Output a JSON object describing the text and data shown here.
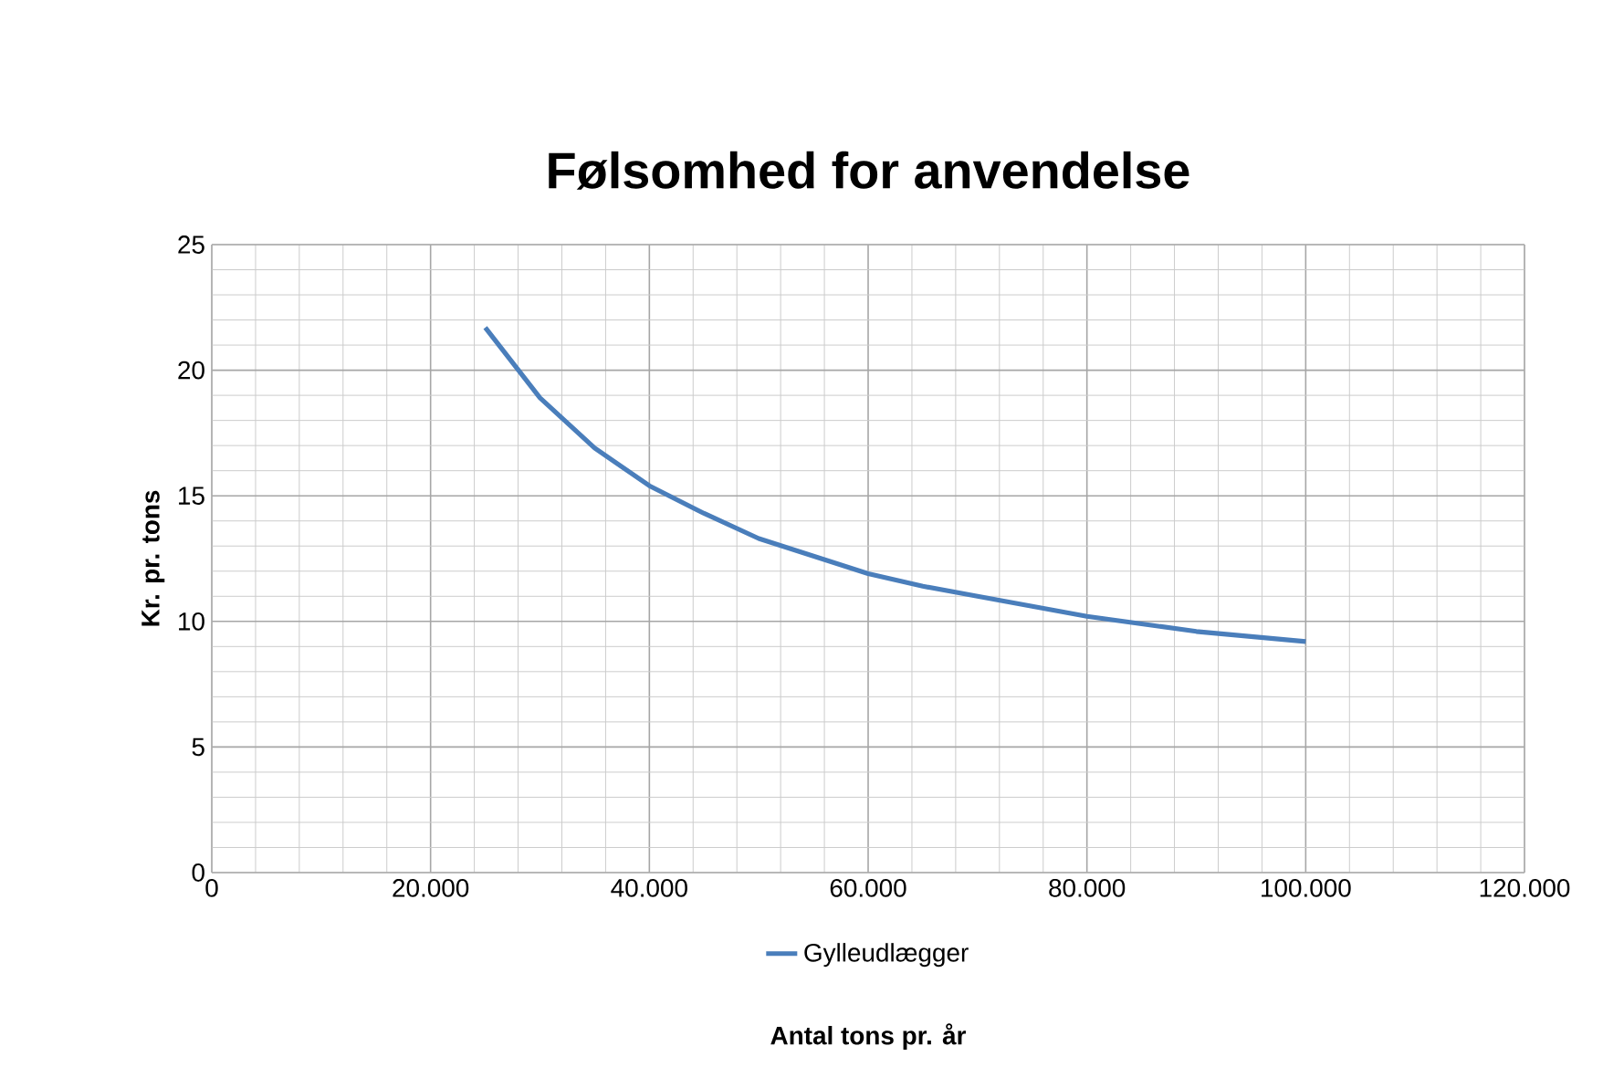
{
  "chart_data": {
    "type": "line",
    "title": "Følsomhed for anvendelse",
    "xlabel": "Antal tons pr. år",
    "ylabel": "Kr. pr. tons",
    "x": [
      25000,
      30000,
      35000,
      40000,
      45000,
      50000,
      55000,
      60000,
      65000,
      70000,
      75000,
      80000,
      85000,
      90000,
      95000,
      100000
    ],
    "series": [
      {
        "name": "Gylleudlægger",
        "color": "#4a7ebb",
        "values": [
          21.7,
          18.9,
          16.9,
          15.4,
          14.3,
          13.3,
          12.6,
          11.9,
          11.4,
          11.0,
          10.6,
          10.2,
          9.9,
          9.6,
          9.4,
          9.2
        ]
      }
    ],
    "xlim": [
      0,
      120000
    ],
    "ylim": [
      0,
      25
    ],
    "xticks": [
      0,
      {
        "value": 20000,
        "label": "20.000"
      },
      {
        "value": 40000,
        "label": "40.000"
      },
      {
        "value": 60000,
        "label": "60.000"
      },
      {
        "value": 80000,
        "label": "80.000"
      },
      {
        "value": 100000,
        "label": "100.000"
      },
      {
        "value": 120000,
        "label": "120.000"
      }
    ],
    "yticks": [
      0,
      5,
      10,
      15,
      20,
      25
    ],
    "grid": true,
    "legend": "bottom",
    "marker": "none",
    "line_style": "solid"
  }
}
